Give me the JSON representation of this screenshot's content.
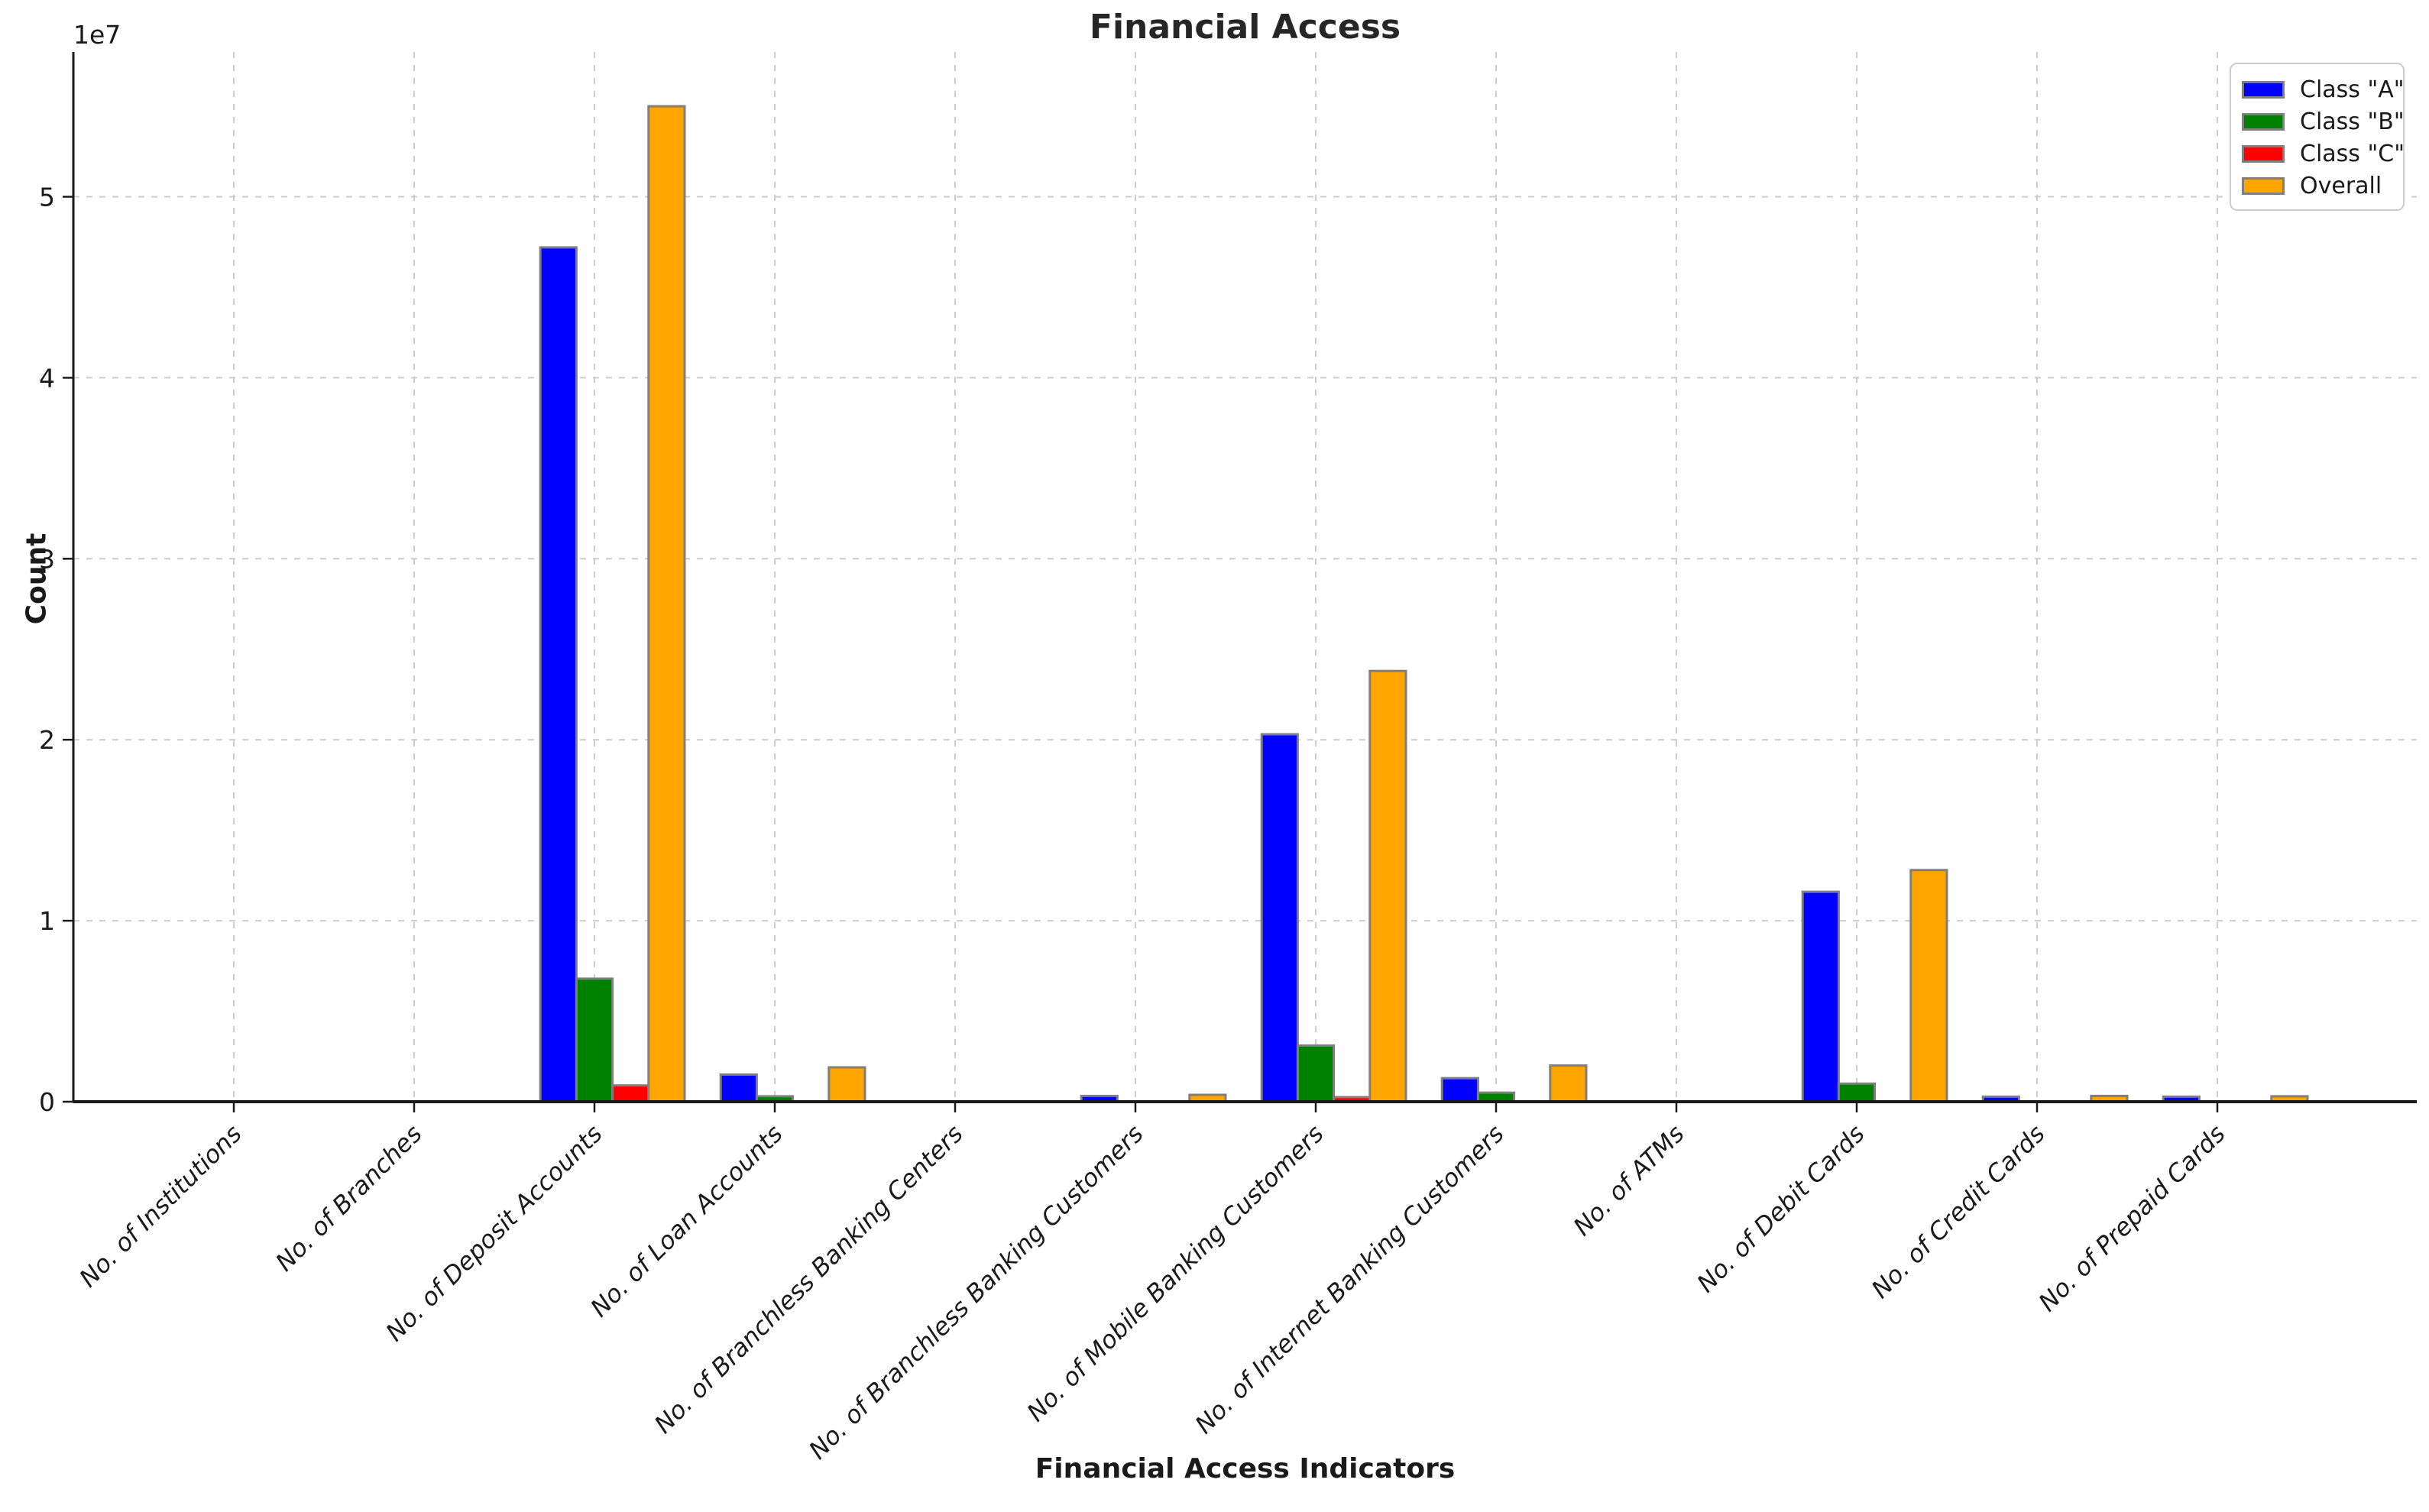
{
  "chart_data": {
    "type": "bar",
    "title": "Financial Access",
    "xlabel": "Financial Access Indicators",
    "ylabel": "Count",
    "offset_text": "1e7",
    "ylim": [
      0,
      58000000
    ],
    "yticks": [
      0,
      10000000,
      20000000,
      30000000,
      40000000,
      50000000
    ],
    "yticklabels": [
      "0",
      "1",
      "2",
      "3",
      "4",
      "5"
    ],
    "grid": true,
    "grid_style": "dashed",
    "legend_position": "upper right",
    "bar_edge_color": "#7f7f7f",
    "categories": [
      "No. of Institutions",
      "No. of Branches",
      "No. of Deposit Accounts",
      "No. of Loan Accounts",
      "No. of Branchless Banking Centers",
      "No. of Branchless Banking Customers",
      "No. of Mobile Banking Customers",
      "No. of Internet Banking Customers",
      "No. of ATMs",
      "No. of Debit Cards",
      "No. of Credit Cards",
      "No. of Prepaid Cards"
    ],
    "series": [
      {
        "name": "Class \"A\"",
        "color": "#0000ff",
        "values": [
          0,
          0,
          47200000,
          1500000,
          0,
          320000,
          20300000,
          1300000,
          0,
          11600000,
          280000,
          280000
        ]
      },
      {
        "name": "Class \"B\"",
        "color": "#008000",
        "values": [
          0,
          0,
          6800000,
          300000,
          0,
          0,
          3100000,
          500000,
          0,
          1000000,
          0,
          0
        ]
      },
      {
        "name": "Class \"C\"",
        "color": "#ff0000",
        "values": [
          0,
          0,
          900000,
          0,
          0,
          0,
          250000,
          0,
          0,
          0,
          0,
          0
        ]
      },
      {
        "name": "Overall",
        "color": "#ffa500",
        "values": [
          0,
          0,
          55000000,
          1900000,
          0,
          380000,
          23800000,
          2000000,
          0,
          12800000,
          320000,
          300000
        ]
      }
    ]
  }
}
